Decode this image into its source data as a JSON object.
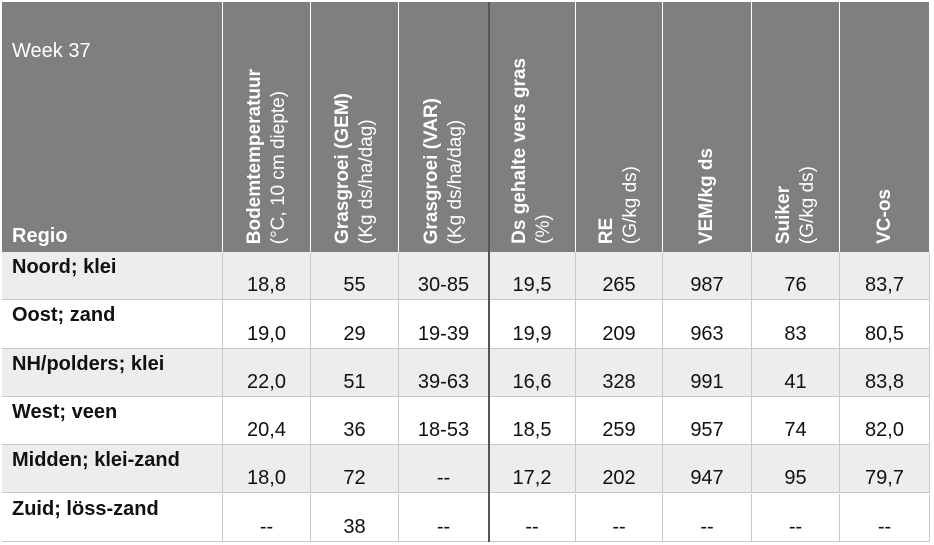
{
  "header": {
    "week": "Week 37",
    "region_label": "Regio",
    "columns": [
      {
        "title": "Bodemtemperatuur",
        "sub": "(°C, 10 cm diepte)"
      },
      {
        "title": "Grasgroei (GEM)",
        "sub": "(Kg ds/ha/dag)"
      },
      {
        "title": "Grasgroei (VAR)",
        "sub": "(Kg ds/ha/dag)"
      },
      {
        "title": "Ds gehalte vers gras",
        "sub": "(%)"
      },
      {
        "title": "RE",
        "sub": "(G/kg ds)"
      },
      {
        "title": "VEM/kg ds"
      },
      {
        "title": "Suiker",
        "sub": "(G/kg ds)"
      },
      {
        "title": "VC-os"
      }
    ]
  },
  "table": {
    "rows": [
      {
        "region": "Noord; klei",
        "values": [
          "18,8",
          "55",
          "30-85",
          "19,5",
          "265",
          "987",
          "76",
          "83,7"
        ]
      },
      {
        "region": "Oost; zand",
        "values": [
          "19,0",
          "29",
          "19-39",
          "19,9",
          "209",
          "963",
          "83",
          "80,5"
        ]
      },
      {
        "region": "NH/polders; klei",
        "values": [
          "22,0",
          "51",
          "39-63",
          "16,6",
          "328",
          "991",
          "41",
          "83,8"
        ]
      },
      {
        "region": "West; veen",
        "values": [
          "20,4",
          "36",
          "18-53",
          "18,5",
          "259",
          "957",
          "74",
          "82,0"
        ]
      },
      {
        "region": "Midden; klei-zand",
        "values": [
          "18,0",
          "72",
          "--",
          "17,2",
          "202",
          "947",
          "95",
          "79,7"
        ]
      },
      {
        "region": "Zuid; löss-zand",
        "values": [
          "--",
          "38",
          "--",
          "--",
          "--",
          "--",
          "--",
          "--"
        ]
      }
    ]
  }
}
